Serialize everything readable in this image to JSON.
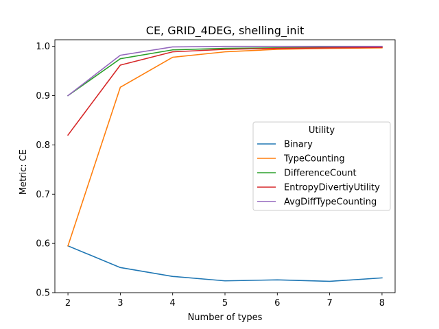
{
  "chart_data": {
    "type": "line",
    "title": "CE, GRID_4DEG, shelling_init",
    "xlabel": "Number of types",
    "ylabel": "Metric: CE",
    "x": [
      2,
      3,
      4,
      5,
      6,
      7,
      8
    ],
    "xlim": [
      1.75,
      8.25
    ],
    "ylim": [
      0.5,
      1.0135
    ],
    "xticks": [
      "2",
      "3",
      "4",
      "5",
      "6",
      "7",
      "8"
    ],
    "yticks": [
      "0.5",
      "0.6",
      "0.7",
      "0.8",
      "0.9",
      "1.0"
    ],
    "grid": false,
    "legend": {
      "title": "Utility",
      "placement": "center-right"
    },
    "series": [
      {
        "name": "Binary",
        "color": "#1f77b4",
        "values": [
          0.595,
          0.551,
          0.533,
          0.524,
          0.526,
          0.523,
          0.53
        ]
      },
      {
        "name": "TypeCounting",
        "color": "#ff7f0e",
        "values": [
          0.595,
          0.917,
          0.978,
          0.989,
          0.994,
          0.996,
          0.997
        ]
      },
      {
        "name": "DifferenceCount",
        "color": "#2ca02c",
        "values": [
          0.9,
          0.975,
          0.993,
          0.996,
          0.997,
          0.998,
          0.999
        ]
      },
      {
        "name": "EntropyDivertiyUtility",
        "color": "#d62728",
        "values": [
          0.82,
          0.962,
          0.989,
          0.994,
          0.996,
          0.997,
          0.998
        ]
      },
      {
        "name": "AvgDiffTypeCounting",
        "color": "#9467bd",
        "values": [
          0.9,
          0.982,
          0.999,
          1.0,
          1.0,
          1.0,
          1.0
        ]
      }
    ]
  }
}
